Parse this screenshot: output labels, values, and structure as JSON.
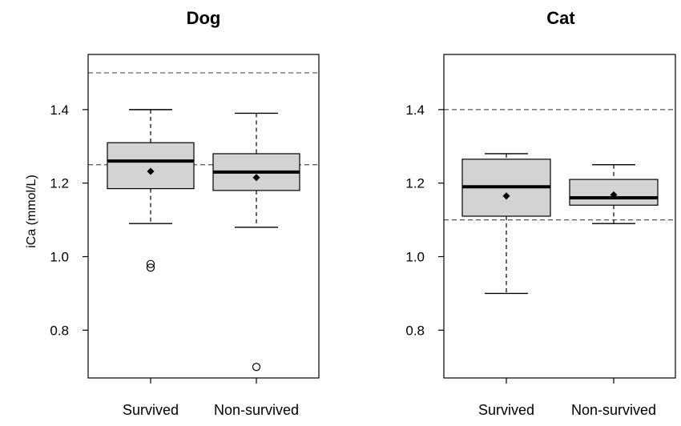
{
  "chart_data": [
    {
      "type": "boxplot",
      "title": "Dog",
      "ylabel": "iCa (mmol/L)",
      "xlabel": "",
      "ylim": [
        0.67,
        1.55
      ],
      "yticks": [
        0.8,
        1.0,
        1.2,
        1.4
      ],
      "ytick_labels": [
        "0.8",
        "1.0",
        "1.2",
        "1.4"
      ],
      "categories": [
        "Survived",
        "Non-survived"
      ],
      "reference_lines": [
        1.25,
        1.5
      ],
      "boxes": [
        {
          "name": "Survived",
          "whisker_low": 1.09,
          "q1": 1.185,
          "median": 1.26,
          "q3": 1.31,
          "whisker_high": 1.4,
          "mean": 1.232,
          "outliers": [
            0.97,
            0.98
          ]
        },
        {
          "name": "Non-survived",
          "whisker_low": 1.08,
          "q1": 1.18,
          "median": 1.23,
          "q3": 1.28,
          "whisker_high": 1.39,
          "mean": 1.215,
          "outliers": [
            0.7
          ]
        }
      ]
    },
    {
      "type": "boxplot",
      "title": "Cat",
      "ylabel": "",
      "xlabel": "",
      "ylim": [
        0.67,
        1.55
      ],
      "yticks": [
        0.8,
        1.0,
        1.2,
        1.4
      ],
      "ytick_labels": [
        "0.8",
        "1.0",
        "1.2",
        "1.4"
      ],
      "categories": [
        "Survived",
        "Non-survived"
      ],
      "reference_lines": [
        1.1,
        1.4
      ],
      "boxes": [
        {
          "name": "Survived",
          "whisker_low": 0.9,
          "q1": 1.11,
          "median": 1.19,
          "q3": 1.265,
          "whisker_high": 1.28,
          "mean": 1.165,
          "outliers": []
        },
        {
          "name": "Non-survived",
          "whisker_low": 1.09,
          "q1": 1.14,
          "median": 1.16,
          "q3": 1.21,
          "whisker_high": 1.25,
          "mean": 1.168,
          "outliers": []
        }
      ]
    }
  ],
  "colors": {
    "box_fill": "#d3d3d3",
    "stroke": "#000000",
    "reference_line": "#555555",
    "background": "#ffffff"
  }
}
